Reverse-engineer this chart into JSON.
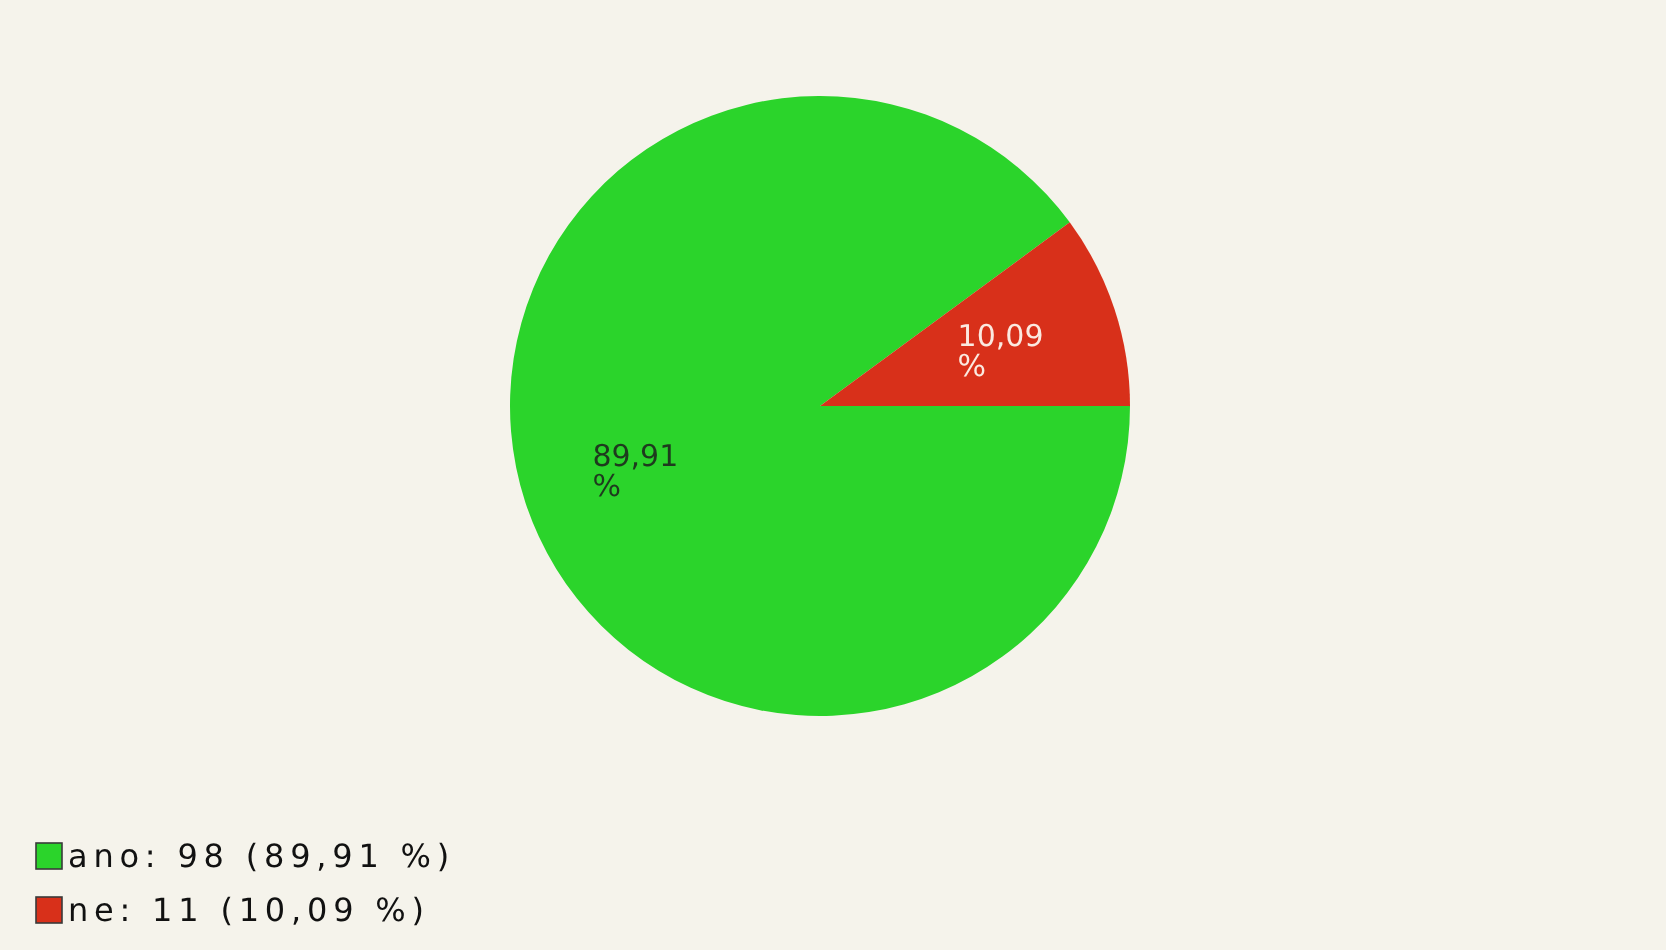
{
  "chart_data": {
    "type": "pie",
    "categories": [
      "ano: 98 (89,91 %)",
      "ne: 11 (10,09 %)"
    ],
    "values": [
      89.91,
      10.09
    ],
    "colors": [
      "#2bd42b",
      "#d8301a"
    ],
    "value_labels": [
      "89,91 %",
      "10,09 %"
    ],
    "legend": "bottom left"
  }
}
